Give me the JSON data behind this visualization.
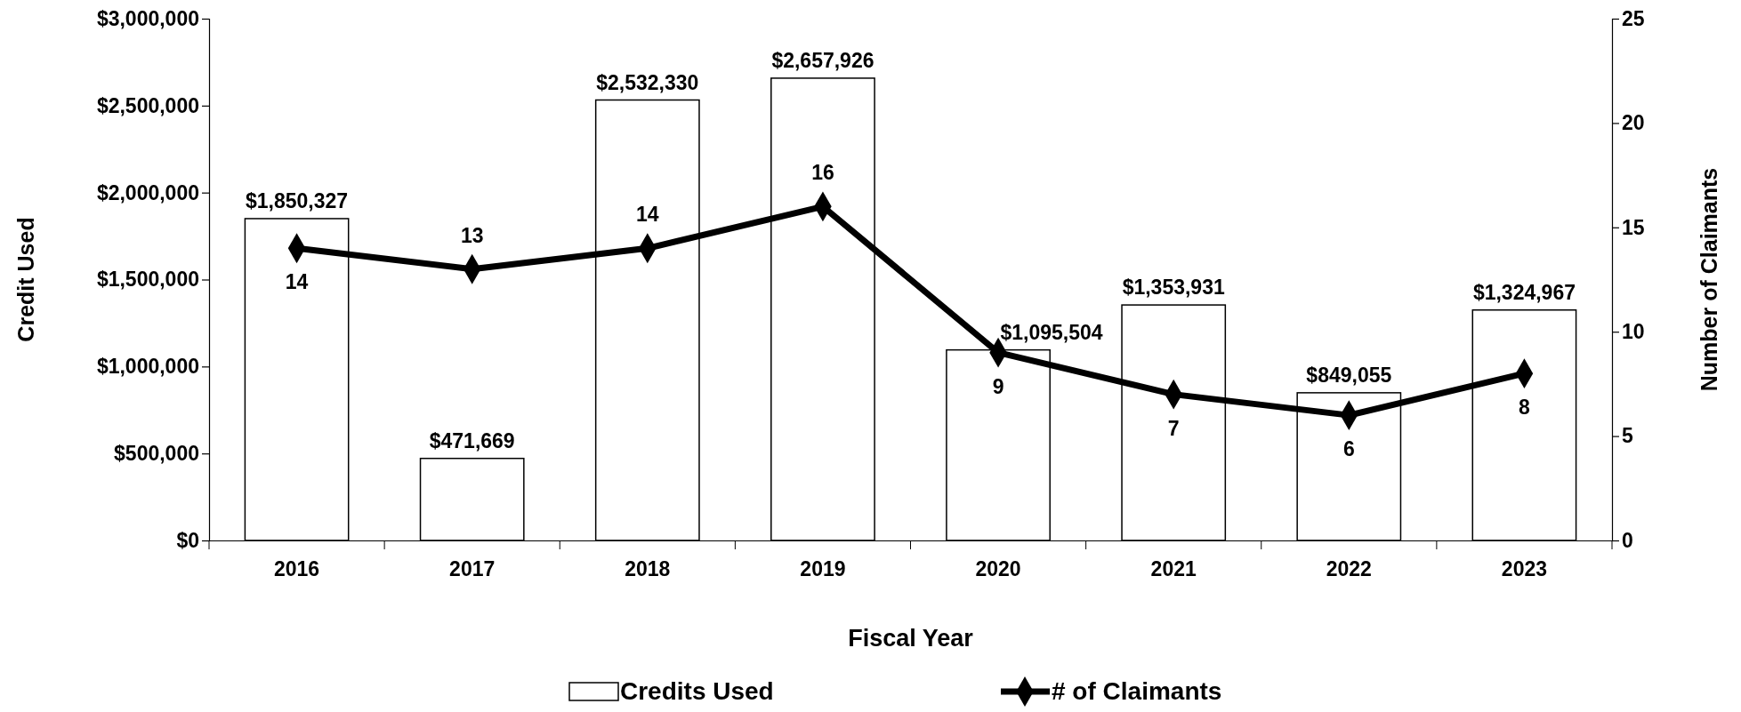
{
  "chart_data": {
    "type": "bar",
    "xlabel": "Fiscal Year",
    "ylabel": "Credit Used",
    "y2label": "Number of Claimants",
    "categories": [
      "2016",
      "2017",
      "2018",
      "2019",
      "2020",
      "2021",
      "2022",
      "2023"
    ],
    "series": [
      {
        "name": "Credits Used",
        "color": "#ffffff",
        "values": [
          1850327,
          471669,
          2532330,
          2657926,
          1095504,
          1353931,
          849055,
          1324967
        ],
        "value_labels": [
          "$1,850,327",
          "$471,669",
          "$2,532,330",
          "$2,657,926",
          "$1,095,504",
          "$1,353,931",
          "$849,055",
          "$1,324,967"
        ]
      },
      {
        "name": "# of Claimants",
        "type": "line",
        "axis": "y2",
        "color": "#000000",
        "marker": "diamond",
        "values": [
          14,
          13,
          14,
          16,
          9,
          7,
          6,
          8
        ]
      }
    ],
    "ylim": [
      0,
      3000000
    ],
    "yticks": [
      {
        "value": 0,
        "label": "$0"
      },
      {
        "value": 500000,
        "label": "$500,000"
      },
      {
        "value": 1000000,
        "label": "$1,000,000"
      },
      {
        "value": 1500000,
        "label": "$1,500,000"
      },
      {
        "value": 2000000,
        "label": "$2,000,000"
      },
      {
        "value": 2500000,
        "label": "$2,500,000"
      },
      {
        "value": 3000000,
        "label": "$3,000,000"
      }
    ],
    "y2lim": [
      0,
      25
    ],
    "y2ticks": [
      0,
      5,
      10,
      15,
      20,
      25
    ],
    "data_labels": true,
    "legend": "bottom",
    "grid": false
  }
}
